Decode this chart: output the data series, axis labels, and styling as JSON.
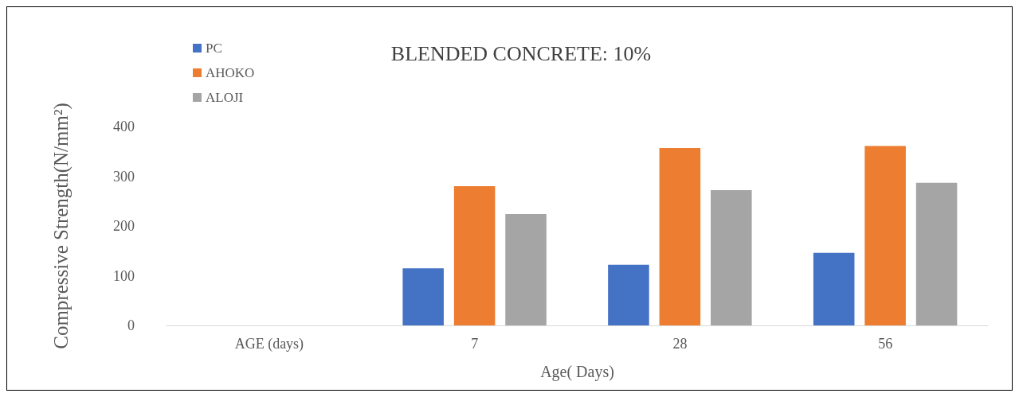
{
  "chart_data": {
    "type": "bar",
    "title": "BLENDED CONCRETE: 10%",
    "xlabel": "Age( Days)",
    "ylabel": "Compressive Strength(N/mm²)",
    "categories": [
      "AGE (days)",
      "7",
      "28",
      "56"
    ],
    "series": [
      {
        "name": "PC",
        "color": "#4472c4",
        "values": [
          null,
          115,
          122,
          146
        ]
      },
      {
        "name": "AHOKO",
        "color": "#ed7d31",
        "values": [
          null,
          280,
          357,
          361
        ]
      },
      {
        "name": "ALOJI",
        "color": "#a5a5a5",
        "values": [
          null,
          224,
          272,
          287
        ]
      }
    ],
    "ylim": [
      0,
      400
    ],
    "yticks": [
      0,
      100,
      200,
      300,
      400
    ],
    "grid": false,
    "legend": "top left"
  }
}
